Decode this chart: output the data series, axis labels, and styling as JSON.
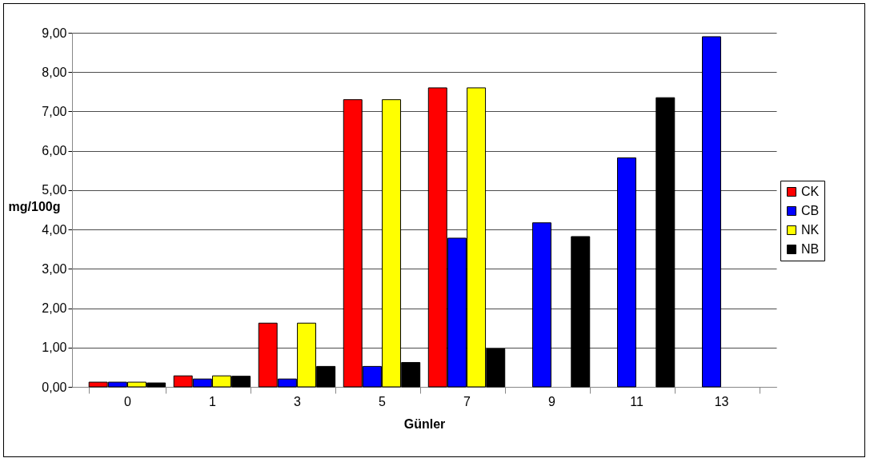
{
  "chart_data": {
    "type": "bar",
    "xlabel": "Günler",
    "ylabel": "mg/100g",
    "categories": [
      "0",
      "1",
      "3",
      "5",
      "7",
      "9",
      "11",
      "13"
    ],
    "series": [
      {
        "name": "CK",
        "color": "#ff0000",
        "values": [
          0.12,
          0.28,
          1.62,
          7.3,
          7.6,
          null,
          null,
          null
        ]
      },
      {
        "name": "CB",
        "color": "#0000ff",
        "values": [
          0.12,
          0.2,
          0.2,
          0.52,
          3.78,
          4.17,
          5.82,
          8.9
        ]
      },
      {
        "name": "NK",
        "color": "#ffff00",
        "values": [
          0.12,
          0.28,
          1.62,
          7.3,
          7.6,
          null,
          null,
          null
        ]
      },
      {
        "name": "NB",
        "color": "#000000",
        "values": [
          0.1,
          0.27,
          0.52,
          0.62,
          0.97,
          3.82,
          7.35,
          null
        ]
      }
    ],
    "ylim": [
      0,
      9
    ],
    "yticks": [
      {
        "value": 0,
        "label": "0,00"
      },
      {
        "value": 1,
        "label": "1,00"
      },
      {
        "value": 2,
        "label": "2,00"
      },
      {
        "value": 3,
        "label": "3,00"
      },
      {
        "value": 4,
        "label": "4,00"
      },
      {
        "value": 5,
        "label": "5,00"
      },
      {
        "value": 6,
        "label": "6,00"
      },
      {
        "value": 7,
        "label": "7,00"
      },
      {
        "value": 8,
        "label": "8,00"
      },
      {
        "value": 9,
        "label": "9,00"
      }
    ],
    "grid": "y",
    "legend": "right"
  }
}
